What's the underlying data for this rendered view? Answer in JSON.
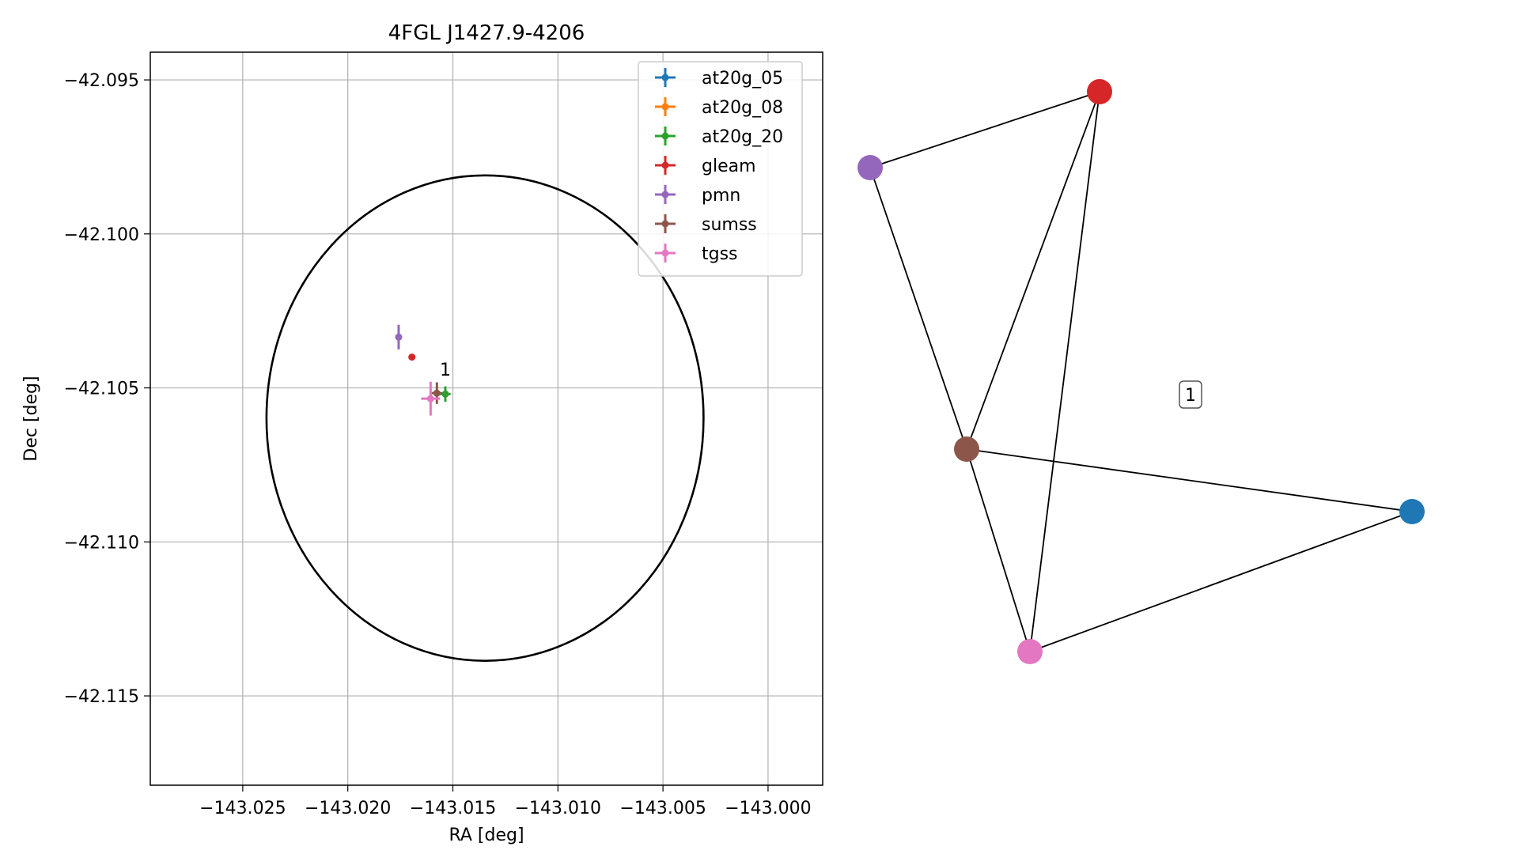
{
  "chart_data": [
    {
      "type": "scatter",
      "title": "4FGL J1427.9-4206",
      "xlabel": "RA [deg]",
      "ylabel": "Dec [deg]",
      "xlim": [
        -143.0294,
        -142.9974
      ],
      "ylim": [
        -42.1179,
        -42.0941
      ],
      "xticks": [
        -143.025,
        -143.02,
        -143.015,
        -143.01,
        -143.005,
        -143.0
      ],
      "xtick_labels": [
        "−143.025",
        "−143.020",
        "−143.015",
        "−143.010",
        "−143.005",
        "−143.000"
      ],
      "yticks": [
        -42.095,
        -42.1,
        -42.105,
        -42.11,
        -42.115
      ],
      "ytick_labels": [
        "−42.095",
        "−42.100",
        "−42.105",
        "−42.110",
        "−42.115"
      ],
      "grid": true,
      "legend_position": "top-right",
      "ellipse": {
        "center_ra": -143.01347,
        "center_dec": -42.10598,
        "semi_axis_ra": 0.0104,
        "semi_axis_dec": 0.00788
      },
      "series": [
        {
          "name": "at20g_05",
          "color": "#1f77b4",
          "points": []
        },
        {
          "name": "at20g_08",
          "color": "#ff7f0e",
          "points": []
        },
        {
          "name": "at20g_20",
          "color": "#2ca02c",
          "points": [
            {
              "x": -143.01536,
              "y": -42.1052,
              "xerr": 0.00025,
              "yerr": 0.00025
            }
          ]
        },
        {
          "name": "gleam",
          "color": "#d62728",
          "points": [
            {
              "x": -143.01695,
              "y": -42.104,
              "xerr": 0,
              "yerr": 0
            }
          ]
        },
        {
          "name": "pmn",
          "color": "#9467bd",
          "points": [
            {
              "x": -143.01758,
              "y": -42.10335,
              "xerr": 0.00015,
              "yerr": 0.0004
            }
          ]
        },
        {
          "name": "sumss",
          "color": "#8c564b",
          "points": [
            {
              "x": -143.01576,
              "y": -42.10517,
              "xerr": 0.00025,
              "yerr": 0.00035
            }
          ]
        },
        {
          "name": "tgss",
          "color": "#e377c2",
          "points": [
            {
              "x": -143.01606,
              "y": -42.10535,
              "xerr": 0.00045,
              "yerr": 0.00055
            }
          ]
        }
      ],
      "annotations": [
        {
          "text": "1",
          "x": -143.01536,
          "y": -42.1046
        }
      ]
    },
    {
      "type": "network",
      "label": "1",
      "nodes": [
        {
          "id": "at20g_05",
          "color": "#1f77b4"
        },
        {
          "id": "gleam",
          "color": "#d62728"
        },
        {
          "id": "pmn",
          "color": "#9467bd"
        },
        {
          "id": "sumss",
          "color": "#8c564b"
        },
        {
          "id": "tgss",
          "color": "#e377c2"
        }
      ],
      "edges": [
        [
          "pmn",
          "gleam"
        ],
        [
          "pmn",
          "sumss"
        ],
        [
          "gleam",
          "sumss"
        ],
        [
          "gleam",
          "tgss"
        ],
        [
          "sumss",
          "at20g_05"
        ],
        [
          "sumss",
          "tgss"
        ],
        [
          "tgss",
          "at20g_05"
        ]
      ]
    }
  ]
}
